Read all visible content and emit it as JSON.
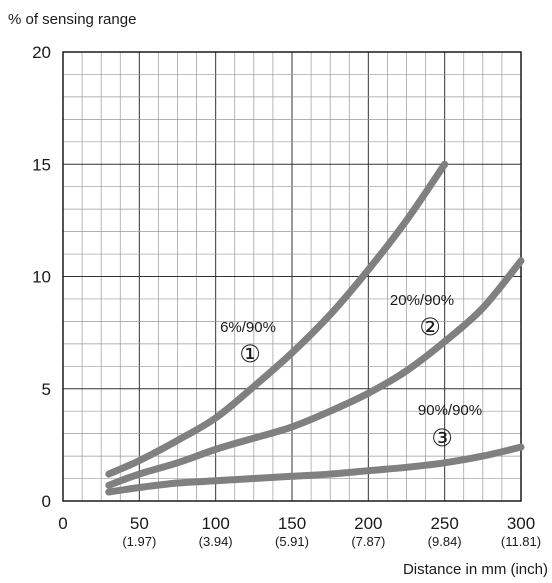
{
  "chart_data": {
    "type": "line",
    "ylabel": "% of sensing range",
    "xlabel": "Distance in mm (inch)",
    "xlim": [
      0,
      300
    ],
    "ylim": [
      0,
      20
    ],
    "x_ticks": [
      {
        "value": 0,
        "label": "0",
        "sub": ""
      },
      {
        "value": 50,
        "label": "50",
        "sub": "(1.97)"
      },
      {
        "value": 100,
        "label": "100",
        "sub": "(3.94)"
      },
      {
        "value": 150,
        "label": "150",
        "sub": "(5.91)"
      },
      {
        "value": 200,
        "label": "200",
        "sub": "(7.87)"
      },
      {
        "value": 250,
        "label": "250",
        "sub": "(9.84)"
      },
      {
        "value": 300,
        "label": "300",
        "sub": "(11.81)"
      }
    ],
    "y_ticks": [
      {
        "value": 0,
        "label": "0"
      },
      {
        "value": 5,
        "label": "5"
      },
      {
        "value": 10,
        "label": "10"
      },
      {
        "value": 15,
        "label": "15"
      },
      {
        "value": 20,
        "label": "20"
      }
    ],
    "grid": true,
    "series": [
      {
        "name": "6%/90%",
        "marker": "①",
        "x": [
          30,
          50,
          75,
          100,
          125,
          150,
          175,
          200,
          225,
          250
        ],
        "y": [
          1.2,
          1.8,
          2.7,
          3.7,
          5.1,
          6.6,
          8.3,
          10.3,
          12.5,
          15.0
        ]
      },
      {
        "name": "20%/90%",
        "marker": "②",
        "x": [
          30,
          50,
          75,
          100,
          125,
          150,
          175,
          200,
          225,
          250,
          275,
          300
        ],
        "y": [
          0.7,
          1.2,
          1.7,
          2.3,
          2.8,
          3.3,
          4.0,
          4.8,
          5.8,
          7.1,
          8.6,
          10.7
        ]
      },
      {
        "name": "90%/90%",
        "marker": "③",
        "x": [
          30,
          50,
          75,
          100,
          125,
          150,
          175,
          200,
          225,
          250,
          275,
          300
        ],
        "y": [
          0.4,
          0.6,
          0.8,
          0.9,
          1.0,
          1.1,
          1.2,
          1.35,
          1.5,
          1.7,
          2.0,
          2.4
        ]
      }
    ],
    "colors": {
      "line": "#808080",
      "grid": "#999999",
      "frame": "#1a1a1a"
    }
  }
}
